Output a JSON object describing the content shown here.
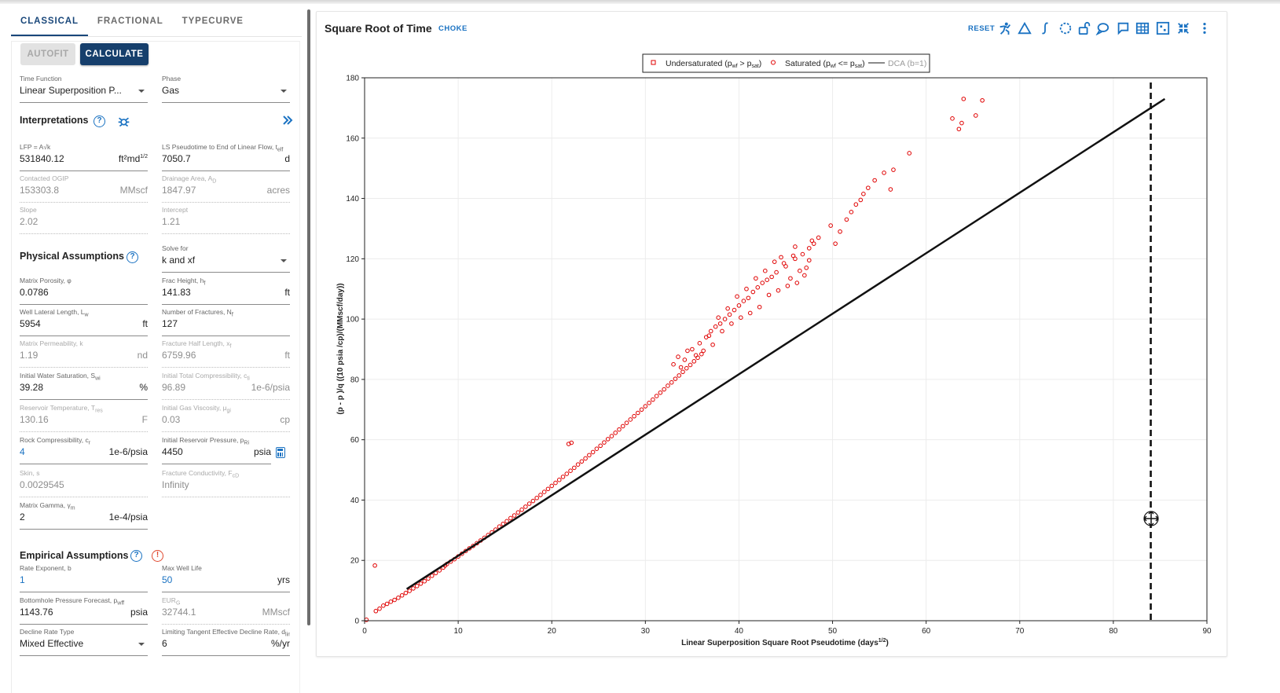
{
  "tabs": [
    "CLASSICAL",
    "FRACTIONAL",
    "TYPECURVE"
  ],
  "buttons": {
    "autofit": "AUTOFIT",
    "calculate": "CALCULATE"
  },
  "selectors": {
    "time_function": {
      "label": "Time Function",
      "value": "Linear Superposition P..."
    },
    "phase": {
      "label": "Phase",
      "value": "Gas"
    },
    "solve_for": {
      "label": "Solve for",
      "value": "k and xf"
    },
    "decline_rate_type": {
      "label": "Decline Rate Type",
      "value": "Mixed Effective"
    }
  },
  "sections": {
    "interpretations": "Interpretations",
    "physical": "Physical Assumptions",
    "empirical": "Empirical Assumptions"
  },
  "fields": {
    "lfp": {
      "label": "LFP = A√k",
      "value": "531840.12",
      "unit": "ft²md"
    },
    "ls_pseudotime": {
      "label": "LS Pseudotime to End of Linear Flow, t",
      "value": "7050.7",
      "unit": "d"
    },
    "contacted_ogip": {
      "label": "Contacted OGIP",
      "value": "153303.8",
      "unit": "MMscf"
    },
    "drainage_area": {
      "label": "Drainage Area, A",
      "value": "1847.97",
      "unit": "acres"
    },
    "slope": {
      "label": "Slope",
      "value": "2.02",
      "unit": ""
    },
    "intercept": {
      "label": "Intercept",
      "value": "1.21",
      "unit": ""
    },
    "matrix_porosity": {
      "label": "Matrix Porosity, φ",
      "value": "0.0786",
      "unit": ""
    },
    "frac_height": {
      "label": "Frac Height, h",
      "value": "141.83",
      "unit": "ft"
    },
    "well_lateral_length": {
      "label": "Well Lateral Length, L",
      "value": "5954",
      "unit": "ft"
    },
    "number_of_fractures": {
      "label": "Number of Fractures, N",
      "value": "127",
      "unit": ""
    },
    "matrix_permeability": {
      "label": "Matrix Permeability, k",
      "value": "1.19",
      "unit": "nd"
    },
    "fracture_half_length": {
      "label": "Fracture Half Length, x",
      "value": "6759.96",
      "unit": "ft"
    },
    "initial_water_saturation": {
      "label": "Initial Water Saturation, S",
      "value": "39.28",
      "unit": "%"
    },
    "initial_total_compressibility": {
      "label": "Initial Total Compressibility, c",
      "value": "96.89",
      "unit": "1e-6/psia"
    },
    "reservoir_temperature": {
      "label": "Reservoir Temperature, T",
      "value": "130.16",
      "unit": "F"
    },
    "initial_gas_viscosity": {
      "label": "Initial Gas Viscosity, μ",
      "value": "0.03",
      "unit": "cp"
    },
    "rock_compressibility": {
      "label": "Rock Compressibility, c",
      "value": "4",
      "unit": "1e-6/psia"
    },
    "initial_reservoir_pressure": {
      "label": "Initial Reservoir Pressure, p",
      "value": "4450",
      "unit": "psia"
    },
    "skin": {
      "label": "Skin, s",
      "value": "0.0029545",
      "unit": ""
    },
    "fracture_conductivity": {
      "label": "Fracture Conductivity, F",
      "value": "Infinity",
      "unit": ""
    },
    "matrix_gamma": {
      "label": "Matrix Gamma, γ",
      "value": "2",
      "unit": "1e-4/psia"
    },
    "rate_exponent": {
      "label": "Rate Exponent, b",
      "value": "1",
      "unit": ""
    },
    "max_well_life": {
      "label": "Max Well Life",
      "value": "50",
      "unit": "yrs"
    },
    "bottomhole_pressure_forecast": {
      "label": "Bottomhole Pressure Forecast, p",
      "value": "1143.76",
      "unit": "psia"
    },
    "eur": {
      "label": "EUR",
      "value": "32744.1",
      "unit": "MMscf"
    },
    "limiting_tangent": {
      "label": "Limiting Tangent Effective Decline Rate, d",
      "value": "6",
      "unit": "%/yr"
    }
  },
  "chart_header": {
    "title": "Square Root of Time",
    "subtitle": "CHOKE",
    "reset": "RESET"
  },
  "toolbar_icons": [
    "fit-person-icon",
    "triangle-icon",
    "integral-icon",
    "lasso-select-icon",
    "unlock-icon",
    "comment-bubble-icon",
    "chat-icon",
    "table-icon",
    "grid-select-icon",
    "collapse-icon",
    "more-vert-icon"
  ],
  "colors": {
    "accent": "#1a72c2",
    "primary_button": "#163f6c",
    "data_points": "#e00000",
    "warning": "#e0492f"
  },
  "chart_data": {
    "type": "scatter",
    "title": "",
    "xlabel": "Linear Superposition Square Root Pseudotime (days",
    "xlabel_sup": "1/2",
    "ylabel": "(p  - p   )/q  ((10 psia /cp)/(MMscf/day))",
    "xlim": [
      0,
      90
    ],
    "ylim": [
      0,
      180
    ],
    "xticks": [
      0,
      10,
      20,
      30,
      40,
      50,
      60,
      70,
      80,
      90
    ],
    "yticks": [
      0,
      20,
      40,
      60,
      80,
      100,
      120,
      140,
      160,
      180
    ],
    "grid": true,
    "legend_position": "top-center",
    "legend": [
      {
        "name": "Undersaturated (p",
        "name_sub": "wf",
        "name_mid": " > p",
        "name_sub2": "sat",
        "name_end": ")",
        "marker": "square-open",
        "color": "#e00000"
      },
      {
        "name": "Saturated (p",
        "name_sub": "wf",
        "name_mid": " <= p",
        "name_sub2": "sat",
        "name_end": ")",
        "marker": "circle-open",
        "color": "#e00000"
      },
      {
        "name": "DCA (b=1)",
        "marker": "line",
        "color": "#111111"
      }
    ],
    "series": [
      {
        "name": "Saturated",
        "values_xy": [
          [
            0.2,
            0.3
          ],
          [
            1.1,
            18.3
          ],
          [
            1.2,
            3.2
          ],
          [
            1.6,
            4.0
          ],
          [
            2.0,
            5.0
          ],
          [
            2.4,
            5.6
          ],
          [
            2.8,
            6.3
          ],
          [
            3.2,
            6.9
          ],
          [
            3.6,
            7.6
          ],
          [
            4.0,
            8.4
          ],
          [
            4.4,
            9.2
          ],
          [
            4.8,
            9.9
          ],
          [
            5.2,
            10.7
          ],
          [
            5.6,
            11.5
          ],
          [
            6.0,
            12.3
          ],
          [
            6.4,
            13.1
          ],
          [
            6.8,
            14.0
          ],
          [
            7.2,
            14.9
          ],
          [
            7.6,
            15.8
          ],
          [
            8.0,
            16.7
          ],
          [
            8.4,
            17.6
          ],
          [
            8.6,
            18.3
          ],
          [
            8.8,
            18.8
          ],
          [
            9.2,
            19.6
          ],
          [
            9.6,
            20.4
          ],
          [
            10.0,
            21.3
          ],
          [
            10.4,
            22.2
          ],
          [
            10.8,
            23.1
          ],
          [
            11.2,
            24.0
          ],
          [
            11.6,
            24.8
          ],
          [
            12.0,
            25.7
          ],
          [
            12.4,
            26.6
          ],
          [
            12.8,
            27.5
          ],
          [
            13.2,
            28.4
          ],
          [
            13.6,
            29.3
          ],
          [
            14.0,
            30.2
          ],
          [
            14.4,
            31.2
          ],
          [
            14.8,
            32.1
          ],
          [
            15.2,
            33.0
          ],
          [
            15.6,
            34.0
          ],
          [
            16.0,
            34.9
          ],
          [
            16.4,
            35.9
          ],
          [
            16.8,
            36.8
          ],
          [
            17.2,
            37.8
          ],
          [
            17.6,
            38.8
          ],
          [
            18.0,
            39.7
          ],
          [
            18.4,
            40.7
          ],
          [
            18.8,
            41.7
          ],
          [
            19.2,
            42.7
          ],
          [
            19.6,
            43.7
          ],
          [
            20.0,
            44.7
          ],
          [
            20.4,
            45.7
          ],
          [
            20.8,
            46.7
          ],
          [
            21.2,
            47.7
          ],
          [
            21.6,
            48.7
          ],
          [
            22.0,
            49.7
          ],
          [
            22.4,
            50.7
          ],
          [
            22.8,
            51.8
          ],
          [
            23.2,
            52.8
          ],
          [
            23.6,
            53.8
          ],
          [
            24.0,
            54.9
          ],
          [
            21.8,
            58.6
          ],
          [
            22.1,
            59.0
          ],
          [
            24.4,
            55.9
          ],
          [
            24.8,
            57.0
          ],
          [
            25.2,
            58.0
          ],
          [
            25.6,
            59.1
          ],
          [
            26.0,
            60.2
          ],
          [
            26.4,
            61.2
          ],
          [
            26.8,
            62.3
          ],
          [
            27.2,
            63.4
          ],
          [
            27.6,
            64.5
          ],
          [
            28.0,
            65.6
          ],
          [
            28.4,
            66.7
          ],
          [
            28.8,
            67.8
          ],
          [
            29.2,
            68.9
          ],
          [
            29.6,
            70.0
          ],
          [
            30.0,
            71.1
          ],
          [
            30.4,
            72.2
          ],
          [
            30.8,
            73.3
          ],
          [
            31.2,
            74.5
          ],
          [
            31.6,
            75.6
          ],
          [
            32.0,
            76.7
          ],
          [
            32.4,
            77.9
          ],
          [
            32.8,
            79.0
          ],
          [
            33.2,
            80.2
          ],
          [
            33.6,
            81.3
          ],
          [
            34.0,
            82.5
          ],
          [
            34.4,
            83.7
          ],
          [
            34.8,
            84.8
          ],
          [
            35.2,
            86.0
          ],
          [
            35.6,
            87.2
          ],
          [
            36.0,
            88.4
          ],
          [
            33.0,
            85.0
          ],
          [
            33.5,
            87.5
          ],
          [
            34.5,
            89.5
          ],
          [
            35.0,
            90.0
          ],
          [
            35.8,
            92.0
          ],
          [
            36.5,
            94.0
          ],
          [
            37.0,
            96.0
          ],
          [
            37.5,
            97.5
          ],
          [
            38.0,
            98.5
          ],
          [
            38.5,
            100.0
          ],
          [
            39.0,
            101.5
          ],
          [
            39.5,
            103.0
          ],
          [
            40.0,
            104.5
          ],
          [
            40.5,
            106.0
          ],
          [
            41.0,
            107.0
          ],
          [
            41.5,
            109.0
          ],
          [
            42.0,
            110.5
          ],
          [
            42.5,
            112.0
          ],
          [
            43.0,
            113.0
          ],
          [
            43.5,
            114.0
          ],
          [
            37.8,
            100.5
          ],
          [
            38.8,
            103.5
          ],
          [
            39.8,
            107.5
          ],
          [
            40.8,
            110.0
          ],
          [
            41.8,
            113.5
          ],
          [
            42.8,
            116.0
          ],
          [
            44.0,
            115.5
          ],
          [
            45.0,
            117.5
          ],
          [
            46.0,
            120.0
          ],
          [
            46.8,
            121.5
          ],
          [
            47.5,
            123.5
          ],
          [
            48.0,
            125.0
          ],
          [
            45.5,
            113.5
          ],
          [
            46.5,
            116.0
          ],
          [
            47.2,
            117.0
          ],
          [
            47.5,
            119.5
          ],
          [
            48.5,
            127.0
          ],
          [
            49.8,
            131.0
          ],
          [
            50.3,
            125.0
          ],
          [
            50.8,
            129.0
          ],
          [
            51.5,
            133.0
          ],
          [
            52.0,
            135.5
          ],
          [
            52.5,
            138.0
          ],
          [
            53.0,
            139.5
          ],
          [
            53.3,
            141.5
          ],
          [
            53.8,
            143.5
          ],
          [
            54.5,
            146.0
          ],
          [
            55.5,
            148.5
          ],
          [
            56.2,
            143.0
          ],
          [
            56.5,
            149.5
          ],
          [
            58.2,
            155.0
          ],
          [
            62.8,
            166.5
          ],
          [
            63.5,
            163.0
          ],
          [
            63.8,
            165.0
          ],
          [
            64.0,
            173.0
          ],
          [
            65.3,
            167.5
          ],
          [
            66.0,
            172.5
          ],
          [
            33.8,
            84.0
          ],
          [
            34.2,
            86.5
          ],
          [
            35.4,
            88.0
          ],
          [
            36.2,
            89.5
          ],
          [
            37.2,
            91.5
          ],
          [
            36.8,
            94.5
          ],
          [
            38.2,
            96.0
          ],
          [
            39.2,
            98.5
          ],
          [
            40.2,
            100.5
          ],
          [
            41.2,
            102.0
          ],
          [
            42.2,
            104.0
          ],
          [
            43.2,
            108.0
          ],
          [
            44.2,
            109.5
          ],
          [
            45.2,
            111.0
          ],
          [
            46.2,
            112.0
          ],
          [
            47.0,
            114.5
          ],
          [
            44.8,
            118.5
          ],
          [
            45.8,
            121.0
          ],
          [
            43.8,
            119.0
          ],
          [
            44.5,
            120.5
          ],
          [
            46.0,
            124.0
          ],
          [
            47.8,
            126.0
          ]
        ]
      },
      {
        "name": "DCA (b=1)",
        "line_xy": [
          [
            4.5,
            10.5
          ],
          [
            85.5,
            173.0
          ]
        ]
      }
    ],
    "vertical_marker_x": 84
  }
}
